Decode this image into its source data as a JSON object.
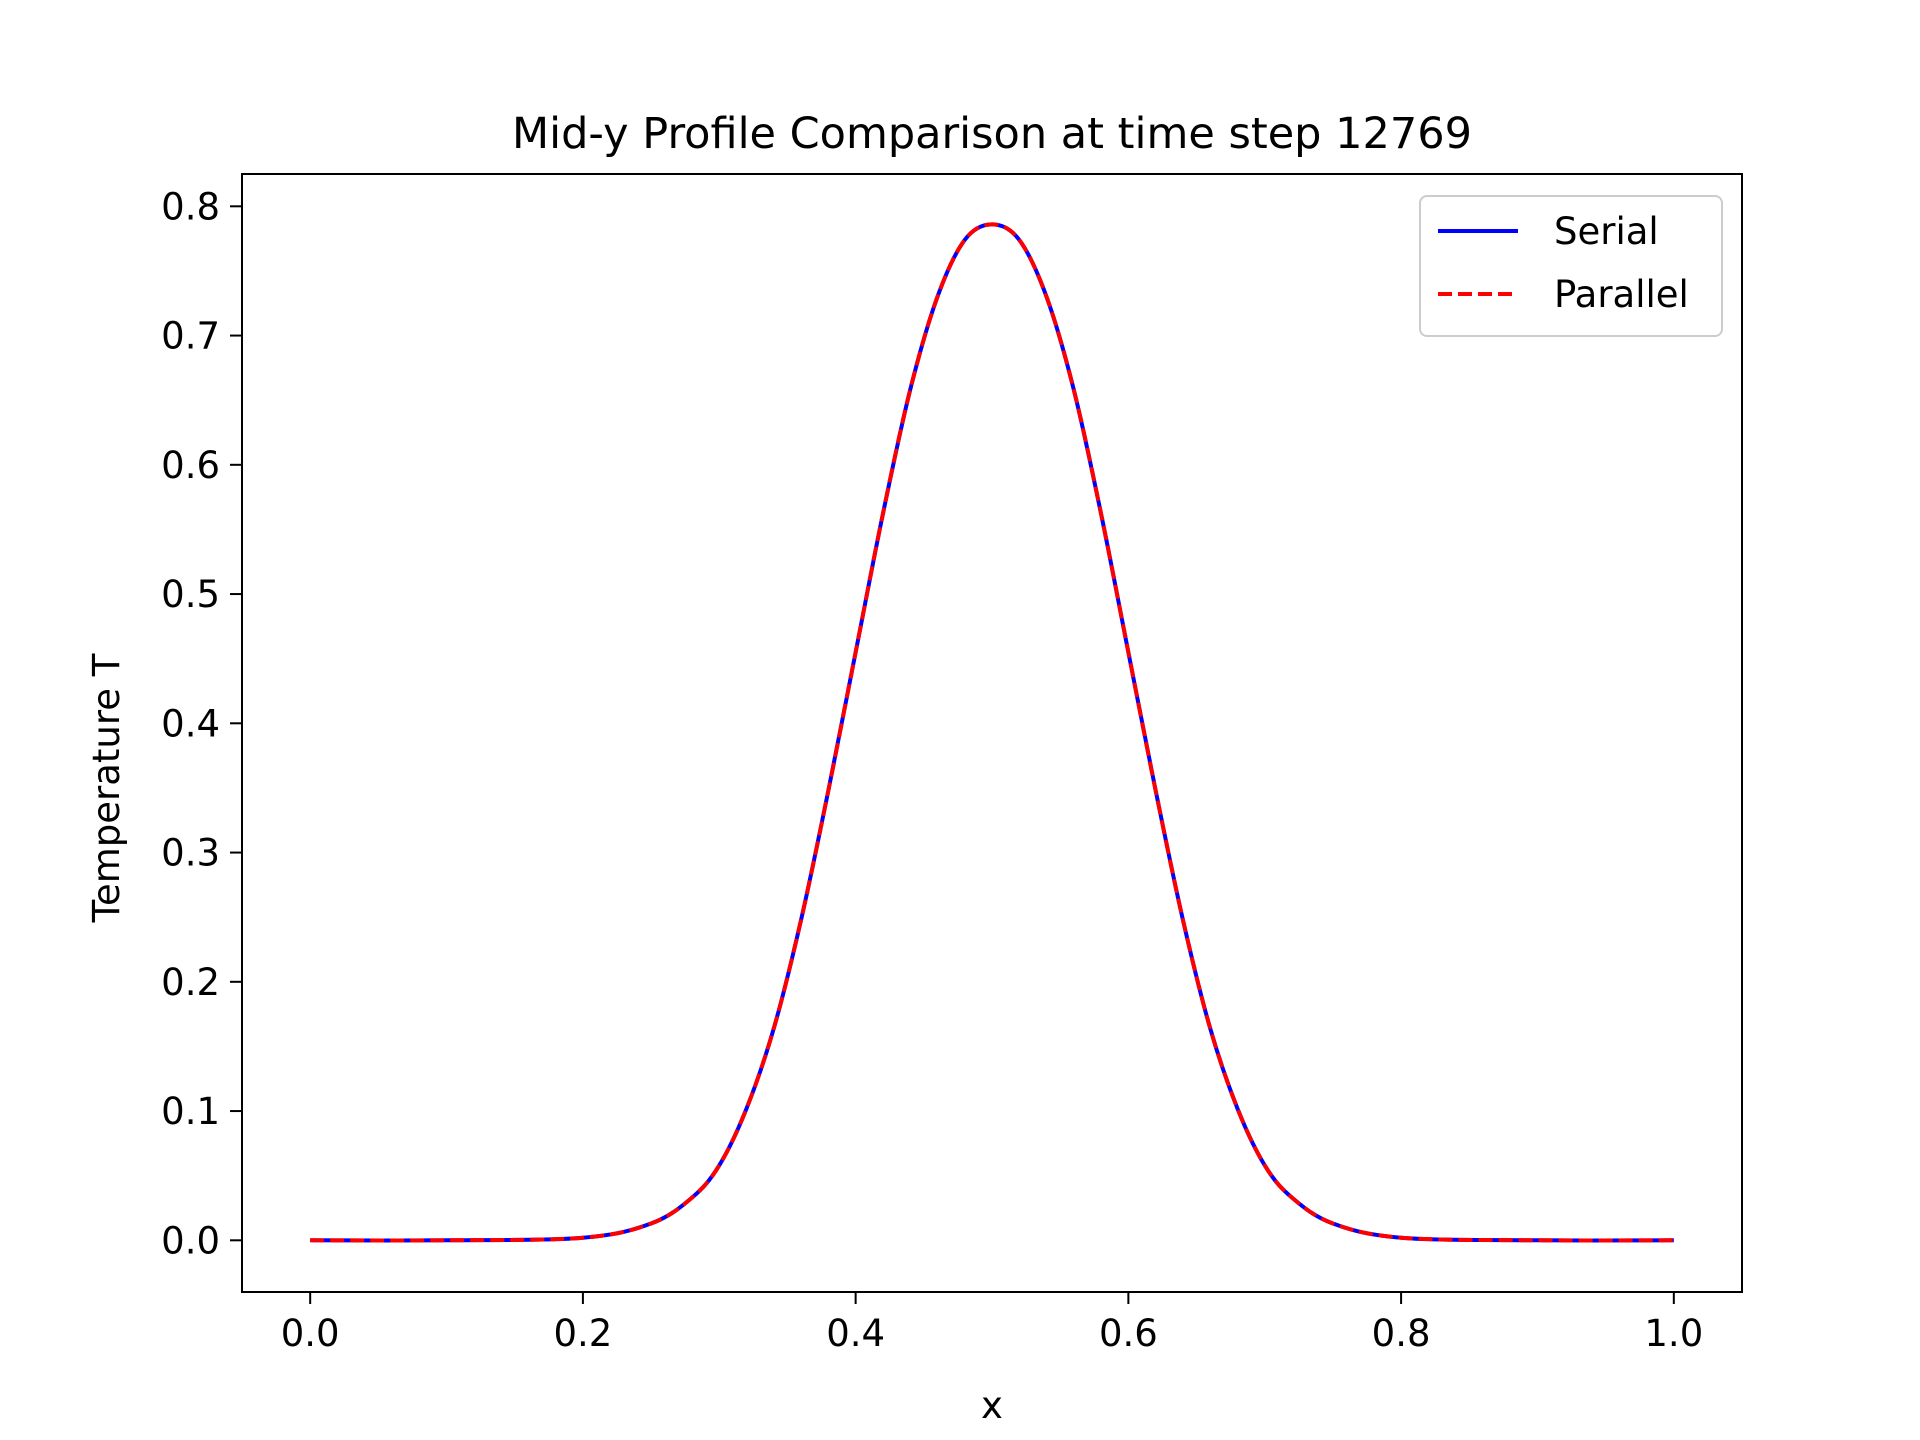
{
  "chart_data": {
    "type": "line",
    "title": "Mid-y Profile Comparison at time step 12769",
    "xlabel": "x",
    "ylabel": "Temperature T",
    "xlim": [
      -0.05,
      1.05
    ],
    "ylim": [
      -0.04,
      0.825
    ],
    "x_ticks": [
      0.0,
      0.2,
      0.4,
      0.6,
      0.8,
      1.0
    ],
    "x_tick_labels": [
      "0.0",
      "0.2",
      "0.4",
      "0.6",
      "0.8",
      "1.0"
    ],
    "y_ticks": [
      0.0,
      0.1,
      0.2,
      0.3,
      0.4,
      0.5,
      0.6,
      0.7,
      0.8
    ],
    "y_tick_labels": [
      "0.0",
      "0.1",
      "0.2",
      "0.3",
      "0.4",
      "0.5",
      "0.6",
      "0.7",
      "0.8"
    ],
    "grid": false,
    "legend_position": "top-right",
    "x": [
      0.0,
      0.1,
      0.2,
      0.25,
      0.28,
      0.3,
      0.32,
      0.34,
      0.36,
      0.38,
      0.4,
      0.42,
      0.44,
      0.46,
      0.48,
      0.5,
      0.52,
      0.54,
      0.56,
      0.58,
      0.6,
      0.62,
      0.64,
      0.66,
      0.68,
      0.7,
      0.72,
      0.75,
      0.8,
      0.9,
      1.0
    ],
    "series": [
      {
        "name": "Serial",
        "color": "#0000ff",
        "style": "solid",
        "values": [
          0.0,
          0.0,
          0.002,
          0.013,
          0.033,
          0.058,
          0.102,
          0.164,
          0.248,
          0.348,
          0.455,
          0.562,
          0.658,
          0.73,
          0.774,
          0.786,
          0.774,
          0.73,
          0.658,
          0.562,
          0.455,
          0.348,
          0.248,
          0.164,
          0.102,
          0.058,
          0.033,
          0.013,
          0.002,
          0.0,
          0.0
        ]
      },
      {
        "name": "Parallel",
        "color": "#ff0000",
        "style": "dashed",
        "values": [
          0.0,
          0.0,
          0.002,
          0.013,
          0.033,
          0.058,
          0.102,
          0.164,
          0.248,
          0.348,
          0.455,
          0.562,
          0.658,
          0.73,
          0.774,
          0.786,
          0.774,
          0.73,
          0.658,
          0.562,
          0.455,
          0.348,
          0.248,
          0.164,
          0.102,
          0.058,
          0.033,
          0.013,
          0.002,
          0.0,
          0.0
        ]
      }
    ]
  }
}
